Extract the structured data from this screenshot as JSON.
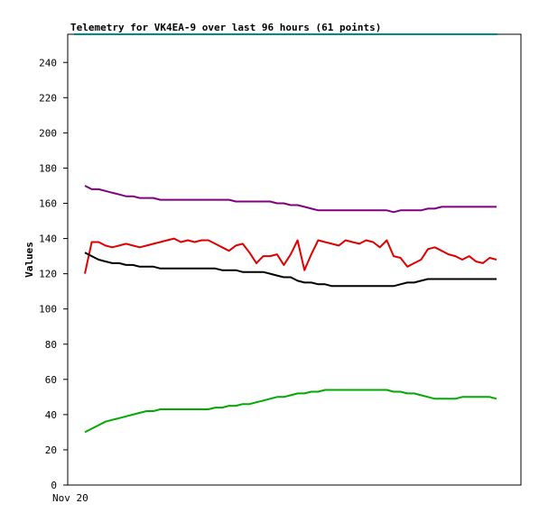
{
  "chart_data": {
    "type": "line",
    "title": "Telemetry for VK4EA-9 over last 96 hours (61 points)",
    "ylabel": "Values",
    "xlabel": "",
    "x_tick_labels": [
      "Nov 20"
    ],
    "ylim": [
      0,
      256
    ],
    "yticks": [
      0,
      20,
      40,
      60,
      80,
      100,
      120,
      140,
      160,
      180,
      200,
      220,
      240
    ],
    "grid": false,
    "legend": "none",
    "series": [
      {
        "color": "#800080",
        "values": [
          170,
          168,
          168,
          167,
          166,
          165,
          164,
          164,
          163,
          163,
          163,
          162,
          162,
          162,
          162,
          162,
          162,
          162,
          162,
          162,
          162,
          162,
          161,
          161,
          161,
          161,
          161,
          161,
          160,
          160,
          159,
          159,
          158,
          157,
          156,
          156,
          156,
          156,
          156,
          156,
          156,
          156,
          156,
          156,
          156,
          155,
          156,
          156,
          156,
          156,
          157,
          157,
          158,
          158,
          158,
          158,
          158,
          158,
          158,
          158,
          158
        ]
      },
      {
        "color": "#e00000",
        "values": [
          120,
          138,
          138,
          136,
          135,
          136,
          137,
          136,
          135,
          136,
          137,
          138,
          139,
          140,
          138,
          139,
          138,
          139,
          139,
          137,
          135,
          133,
          136,
          137,
          132,
          126,
          130,
          130,
          131,
          125,
          131,
          139,
          122,
          131,
          139,
          138,
          137,
          136,
          139,
          138,
          137,
          139,
          138,
          135,
          139,
          130,
          129,
          124,
          126,
          128,
          134,
          135,
          133,
          131,
          130,
          128,
          130,
          127,
          126,
          129,
          128
        ]
      },
      {
        "color": "#000000",
        "values": [
          132,
          130,
          128,
          127,
          126,
          126,
          125,
          125,
          124,
          124,
          124,
          123,
          123,
          123,
          123,
          123,
          123,
          123,
          123,
          123,
          122,
          122,
          122,
          121,
          121,
          121,
          121,
          120,
          119,
          118,
          118,
          116,
          115,
          115,
          114,
          114,
          113,
          113,
          113,
          113,
          113,
          113,
          113,
          113,
          113,
          113,
          114,
          115,
          115,
          116,
          117,
          117,
          117,
          117,
          117,
          117,
          117,
          117,
          117,
          117,
          117
        ]
      },
      {
        "color": "#00aa00",
        "values": [
          30,
          32,
          34,
          36,
          37,
          38,
          39,
          40,
          41,
          42,
          42,
          43,
          43,
          43,
          43,
          43,
          43,
          43,
          43,
          44,
          44,
          45,
          45,
          46,
          46,
          47,
          48,
          49,
          50,
          50,
          51,
          52,
          52,
          53,
          53,
          54,
          54,
          54,
          54,
          54,
          54,
          54,
          54,
          54,
          54,
          53,
          53,
          52,
          52,
          51,
          50,
          49,
          49,
          49,
          49,
          50,
          50,
          50,
          50,
          50,
          49
        ]
      }
    ],
    "top_line_color": "#008b8b"
  }
}
